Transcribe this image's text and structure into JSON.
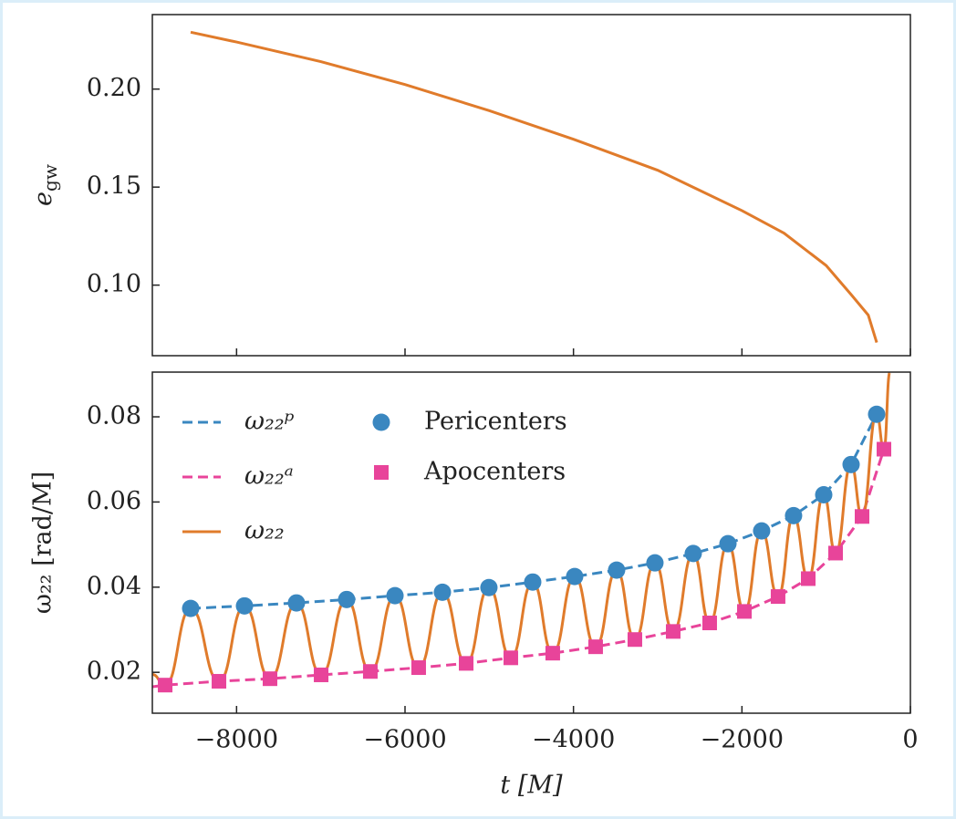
{
  "chart_data": [
    {
      "type": "line",
      "ylabel": [
        "e",
        "gw"
      ],
      "color": "#e07b2b",
      "xlim": [
        -9000,
        0
      ],
      "xticks": [
        -8000,
        -6000,
        -4000,
        -2000,
        0
      ],
      "ylim": [
        0.064,
        0.238
      ],
      "yticks": [
        {
          "value": 0.1,
          "label": "0.10"
        },
        0.15,
        {
          "value": 0.2,
          "label": "0.20"
        }
      ],
      "x": [
        -8545,
        -8000,
        -7000,
        -6000,
        -5000,
        -4000,
        -3000,
        -2000,
        -1500,
        -1000,
        -700,
        -500,
        -400
      ],
      "values": [
        0.229,
        0.224,
        0.214,
        0.2023,
        0.189,
        0.1744,
        0.1586,
        0.138,
        0.1265,
        0.11,
        0.095,
        0.0847,
        0.0707
      ]
    },
    {
      "type": "line",
      "ylabel": "ω₂₂ [rad/M]",
      "xlabel": "t [M]",
      "legend": "upper left",
      "xlim": [
        -9000,
        0
      ],
      "xticks": [
        {
          "value": -8000,
          "label": "−8000"
        },
        {
          "value": -6000,
          "label": "−6000"
        },
        {
          "value": -4000,
          "label": "−4000"
        },
        {
          "value": -2000,
          "label": "−2000"
        },
        0
      ],
      "ylim": [
        0.0104,
        0.0905
      ],
      "yticks": [
        0.02,
        0.04,
        0.06,
        0.08
      ],
      "series": [
        {
          "name": "ω₂₂ᵖ",
          "color": "#3a87c0",
          "dashed": true,
          "x": [
            -8545,
            -7906,
            -7289,
            -6693,
            -6119,
            -5556,
            -5004,
            -4484,
            -3986,
            -3488,
            -3033,
            -2578,
            -2166,
            -1766,
            -1387,
            -1029,
            -704,
            -401
          ],
          "values": [
            0.035,
            0.0356,
            0.0363,
            0.0371,
            0.038,
            0.0388,
            0.0399,
            0.0412,
            0.0425,
            0.044,
            0.0457,
            0.0479,
            0.0502,
            0.0532,
            0.0568,
            0.0617,
            0.0688,
            0.0806
          ]
        },
        {
          "name": "ω₂₂ᵃ",
          "color": "#e8449a",
          "dashed": true,
          "x": [
            -9000,
            -8848,
            -8209,
            -7603,
            -6996,
            -6412,
            -5838,
            -5274,
            -4744,
            -4246,
            -3737,
            -3271,
            -2816,
            -2383,
            -1971,
            -1571,
            -1213,
            -888,
            -574,
            -314
          ],
          "values": [
            0.0166,
            0.017,
            0.0179,
            0.0185,
            0.0194,
            0.0202,
            0.0211,
            0.0221,
            0.0234,
            0.0245,
            0.026,
            0.0277,
            0.0296,
            0.0316,
            0.0343,
            0.0378,
            0.042,
            0.048,
            0.0566,
            0.0724
          ]
        },
        {
          "name": "ω₂₂",
          "color": "#e07b2b",
          "smooth": true,
          "x": [
            -9000,
            -8848,
            -8545,
            -8209,
            -7906,
            -7603,
            -7289,
            -6996,
            -6693,
            -6412,
            -6119,
            -5838,
            -5556,
            -5274,
            -5004,
            -4744,
            -4484,
            -4246,
            -3986,
            -3737,
            -3488,
            -3271,
            -3033,
            -2816,
            -2578,
            -2383,
            -2166,
            -1971,
            -1766,
            -1571,
            -1387,
            -1213,
            -1029,
            -888,
            -704,
            -574,
            -401,
            -314,
            -243
          ],
          "values": [
            0.0195,
            0.017,
            0.035,
            0.0179,
            0.0356,
            0.0185,
            0.0363,
            0.0194,
            0.0371,
            0.0202,
            0.038,
            0.0211,
            0.0388,
            0.0221,
            0.0399,
            0.0234,
            0.0412,
            0.0245,
            0.0425,
            0.026,
            0.044,
            0.0277,
            0.0457,
            0.0296,
            0.0479,
            0.0316,
            0.0502,
            0.0343,
            0.0532,
            0.0378,
            0.0568,
            0.042,
            0.0617,
            0.048,
            0.0688,
            0.0566,
            0.0806,
            0.0724,
            0.0905
          ]
        },
        {
          "name": "Pericenters",
          "color": "#3a87c0",
          "marker": "circle",
          "x": [
            -8545,
            -7906,
            -7289,
            -6693,
            -6119,
            -5556,
            -5004,
            -4484,
            -3986,
            -3488,
            -3033,
            -2578,
            -2166,
            -1766,
            -1387,
            -1029,
            -704,
            -401
          ],
          "values": [
            0.035,
            0.0356,
            0.0363,
            0.0371,
            0.038,
            0.0388,
            0.0399,
            0.0412,
            0.0425,
            0.044,
            0.0457,
            0.0479,
            0.0502,
            0.0532,
            0.0568,
            0.0617,
            0.0688,
            0.0806
          ]
        },
        {
          "name": "Apocenters",
          "color": "#e8449a",
          "marker": "square",
          "x": [
            -8848,
            -8209,
            -7603,
            -6996,
            -6412,
            -5838,
            -5274,
            -4744,
            -4246,
            -3737,
            -3271,
            -2816,
            -2383,
            -1971,
            -1571,
            -1213,
            -888,
            -574,
            -314
          ],
          "values": [
            0.017,
            0.0179,
            0.0185,
            0.0194,
            0.0202,
            0.0211,
            0.0221,
            0.0234,
            0.0245,
            0.026,
            0.0277,
            0.0296,
            0.0316,
            0.0343,
            0.0378,
            0.042,
            0.048,
            0.0566,
            0.0724
          ]
        }
      ]
    }
  ]
}
